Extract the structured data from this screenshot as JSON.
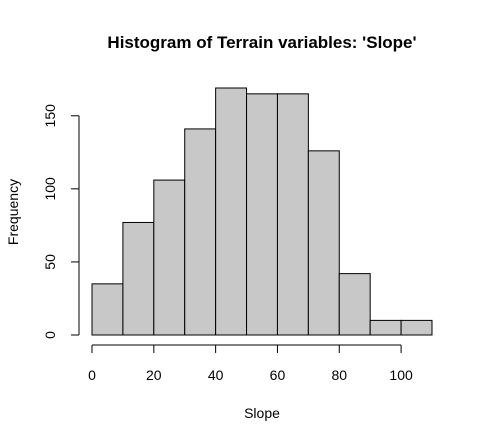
{
  "chart_data": {
    "type": "bar",
    "title": "Histogram of Terrain variables: 'Slope'",
    "xlabel": "Slope",
    "ylabel": "Frequency",
    "bins": [
      {
        "start": 0,
        "end": 10,
        "count": 35
      },
      {
        "start": 10,
        "end": 20,
        "count": 77
      },
      {
        "start": 20,
        "end": 30,
        "count": 106
      },
      {
        "start": 30,
        "end": 40,
        "count": 141
      },
      {
        "start": 40,
        "end": 50,
        "count": 169
      },
      {
        "start": 50,
        "end": 60,
        "count": 165
      },
      {
        "start": 60,
        "end": 70,
        "count": 165
      },
      {
        "start": 70,
        "end": 80,
        "count": 126
      },
      {
        "start": 80,
        "end": 90,
        "count": 42
      },
      {
        "start": 90,
        "end": 100,
        "count": 10
      },
      {
        "start": 100,
        "end": 110,
        "count": 10
      }
    ],
    "xlim": [
      0,
      110
    ],
    "ylim": [
      0,
      170
    ],
    "xticks": [
      0,
      20,
      40,
      60,
      80,
      100
    ],
    "yticks": [
      0,
      50,
      100,
      150
    ],
    "grid": false,
    "legend": "none"
  }
}
